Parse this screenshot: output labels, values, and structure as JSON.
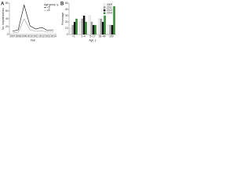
{
  "chart_data": [
    {
      "type": "line",
      "title": "A",
      "y_label": "No. hospitalizations",
      "x_label": "Year",
      "categories": [
        "2007",
        "2008",
        "2009",
        "2010",
        "2011",
        "2012",
        "2013",
        "2014"
      ],
      "legend_title": "Age group, y",
      "legend": "upper right",
      "series": [
        {
          "name": "<5",
          "color": "#111111",
          "values": [
            8,
            12,
            75,
            22,
            14,
            18,
            10,
            12
          ]
        },
        {
          "name": "≥5",
          "color": "#999999",
          "values": [
            4,
            6,
            40,
            12,
            8,
            9,
            6,
            7
          ]
        }
      ],
      "ylim": [
        0,
        80
      ],
      "yticks": [
        0,
        20,
        40,
        60,
        80
      ]
    },
    {
      "type": "bar",
      "title": "B",
      "y_label": "Percentage",
      "x_label": "Age, y",
      "categories": [
        "<1",
        "1–4",
        "5–17",
        "18–49",
        "≥50"
      ],
      "legend": "upper right",
      "series": [
        {
          "name": "2009",
          "color": "#ffffff",
          "values": [
            10,
            20,
            30,
            25,
            15
          ]
        },
        {
          "name": "2011",
          "color": "#aaaaaa",
          "values": [
            15,
            25,
            20,
            25,
            15
          ]
        },
        {
          "name": "2013",
          "color": "#111111",
          "values": [
            20,
            30,
            15,
            20,
            15
          ]
        },
        {
          "name": "2014",
          "color": "#3a9a3a",
          "values": [
            25,
            20,
            15,
            30,
            45
          ]
        }
      ],
      "ylim": [
        0,
        50
      ],
      "yticks": [
        0,
        10,
        20,
        30,
        40,
        50
      ]
    }
  ]
}
